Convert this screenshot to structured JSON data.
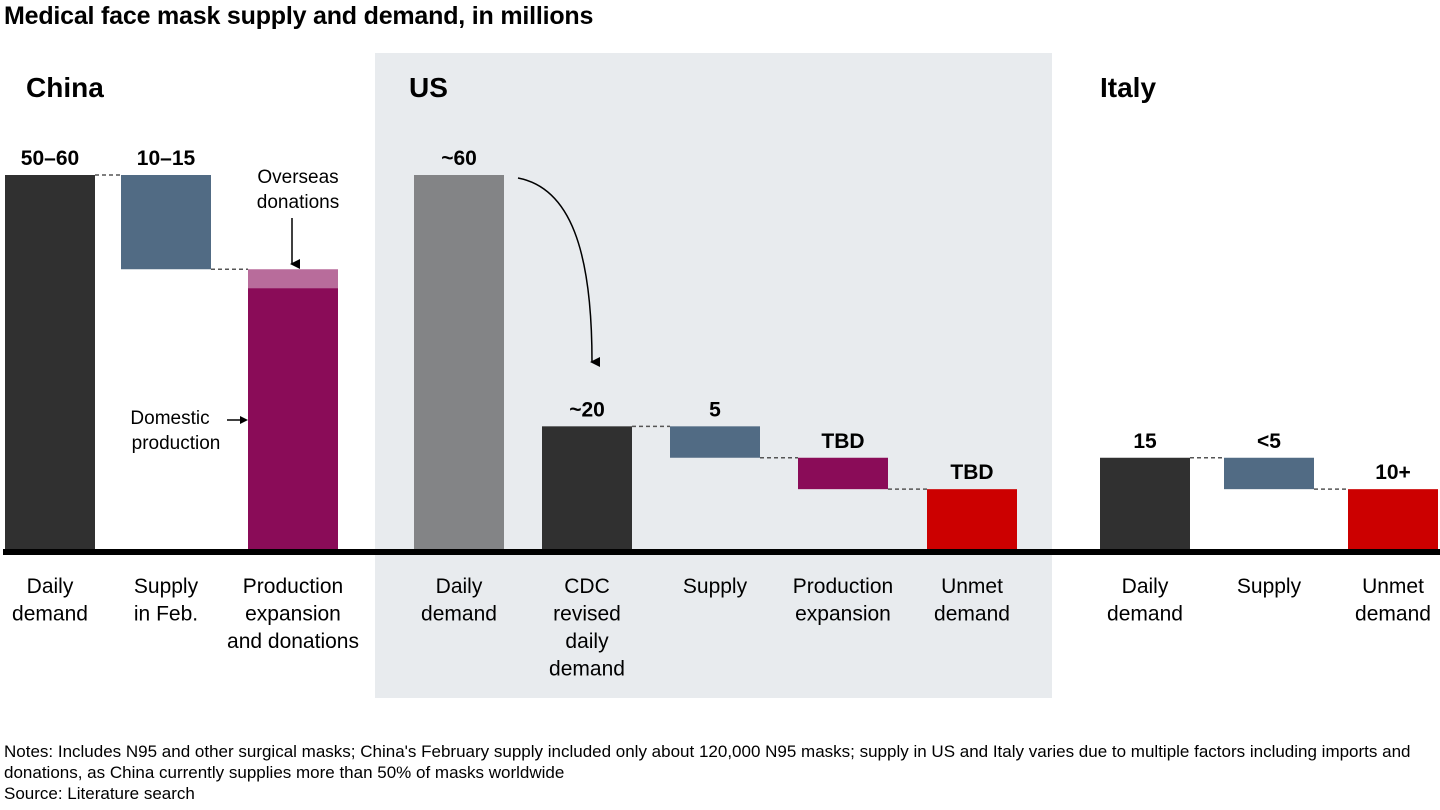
{
  "title": "Medical face mask supply and demand, in millions",
  "colors": {
    "demand": "#303030",
    "demand_original": "#838486",
    "supply": "#516b84",
    "production": "#8a0c58",
    "donations": "#b86c9b",
    "unmet": "#cc0000",
    "us_panel": "#e8ebee"
  },
  "chart_data": {
    "type": "bar",
    "subtype": "waterfall",
    "title": "Medical face mask supply and demand, in millions",
    "units": "millions",
    "ylim": [
      0,
      60
    ],
    "grid": false,
    "groups": [
      {
        "region": "China",
        "shaded": false,
        "bars": [
          {
            "category": "Daily demand",
            "label": "50–60",
            "kind": "total",
            "start": 0,
            "end": 60,
            "color_key": "demand"
          },
          {
            "category": "Supply in Feb.",
            "label": "10–15",
            "kind": "step",
            "start": 60,
            "end": 45,
            "color_key": "supply"
          },
          {
            "category": "Production expansion and donations",
            "label": "",
            "kind": "stacked",
            "segments": [
              {
                "name": "Domestic production",
                "start": 0,
                "end": 42,
                "color_key": "production"
              },
              {
                "name": "Overseas donations",
                "start": 42,
                "end": 45,
                "color_key": "donations"
              }
            ]
          }
        ]
      },
      {
        "region": "US",
        "shaded": true,
        "bars": [
          {
            "category": "Daily demand",
            "label": "~60",
            "kind": "total",
            "start": 0,
            "end": 60,
            "color_key": "demand_original"
          },
          {
            "category": "CDC revised daily demand",
            "label": "~20",
            "kind": "total",
            "start": 0,
            "end": 20,
            "color_key": "demand"
          },
          {
            "category": "Supply",
            "label": "5",
            "kind": "step",
            "start": 20,
            "end": 15,
            "color_key": "supply"
          },
          {
            "category": "Production expansion",
            "label": "TBD",
            "kind": "step",
            "start": 15,
            "end": 10,
            "color_key": "production"
          },
          {
            "category": "Unmet demand",
            "label": "TBD",
            "kind": "total",
            "start": 0,
            "end": 10,
            "color_key": "unmet"
          }
        ]
      },
      {
        "region": "Italy",
        "shaded": false,
        "bars": [
          {
            "category": "Daily demand",
            "label": "15",
            "kind": "total",
            "start": 0,
            "end": 15,
            "color_key": "demand"
          },
          {
            "category": "Supply",
            "label": "<5",
            "kind": "step",
            "start": 15,
            "end": 10,
            "color_key": "supply"
          },
          {
            "category": "Unmet demand",
            "label": "10+",
            "kind": "total",
            "start": 0,
            "end": 10,
            "color_key": "unmet"
          }
        ]
      }
    ],
    "annotations": [
      {
        "text": "Overseas donations",
        "target": "China / Production expansion and donations / Overseas donations"
      },
      {
        "text": "Domestic production",
        "target": "China / Production expansion and donations / Domestic production"
      },
      {
        "text": "",
        "type": "curved-arrow",
        "from": "US / Daily demand",
        "to": "US / CDC revised daily demand"
      }
    ]
  },
  "notes": "Notes: Includes N95 and other surgical masks; China's February supply included only about 120,000 N95 masks; supply in US and Italy varies due to multiple factors including imports and donations, as China currently supplies more than 50% of masks worldwide",
  "source": "Source: Literature search"
}
